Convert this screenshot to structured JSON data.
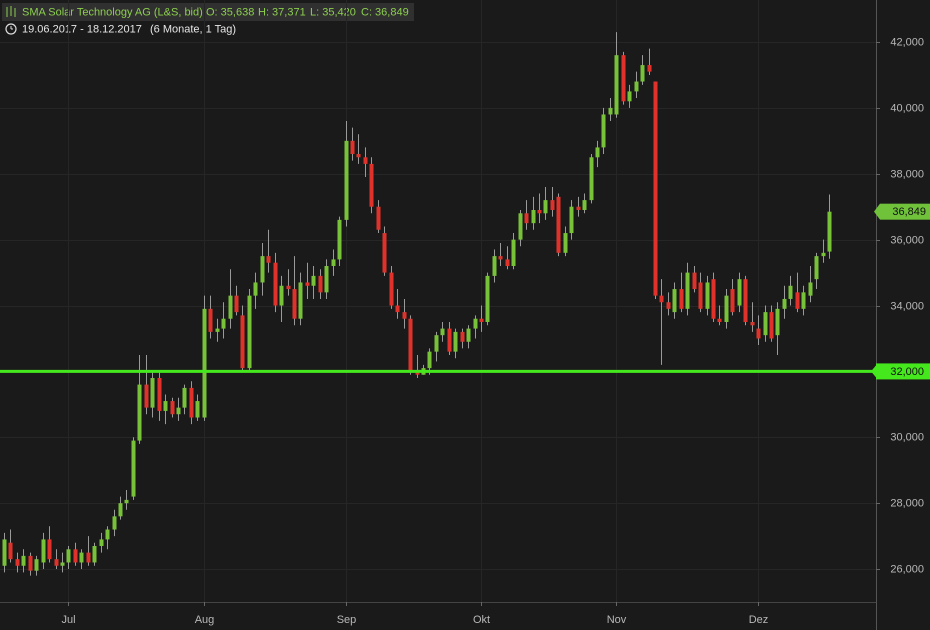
{
  "chart_data": {
    "type": "candlestick",
    "header": {
      "title": "SMA Solar Technology AG (L&S, bid)",
      "ohlc": [
        "O: 35,638",
        "H: 37,371",
        "L: 35,420",
        "C: 36,849"
      ],
      "range": "19.06.2017 - 18.12.2017",
      "period": "(6 Monate, 1 Tag)"
    },
    "up_color": "#78c23a",
    "down_color": "#e0322b",
    "ylim": [
      25000,
      43275
    ],
    "yticks": [
      {
        "value": 26000,
        "label": "26,000"
      },
      {
        "value": 28000,
        "label": "28,000"
      },
      {
        "value": 30000,
        "label": "30,000"
      },
      {
        "value": 32000,
        "label": "32,000"
      },
      {
        "value": 34000,
        "label": "34,000"
      },
      {
        "value": 36000,
        "label": "36,000"
      },
      {
        "value": 38000,
        "label": "38,000"
      },
      {
        "value": 40000,
        "label": "40,000"
      },
      {
        "value": 42000,
        "label": "42,000"
      }
    ],
    "grid": true,
    "level_line": {
      "value": 32000,
      "label": "32,000",
      "color": "#44e81c"
    },
    "last_price": {
      "value": 36849,
      "label": "36,849",
      "color": "#6fc23a"
    },
    "categories": [
      null,
      null,
      null,
      null,
      null,
      null,
      null,
      null,
      null,
      null,
      "Jul",
      null,
      null,
      null,
      null,
      null,
      null,
      null,
      null,
      null,
      null,
      null,
      null,
      null,
      null,
      null,
      null,
      null,
      null,
      null,
      null,
      "Aug",
      null,
      null,
      null,
      null,
      null,
      null,
      null,
      null,
      null,
      null,
      null,
      null,
      null,
      null,
      null,
      null,
      null,
      null,
      null,
      null,
      null,
      "Sep",
      null,
      null,
      null,
      null,
      null,
      null,
      null,
      null,
      null,
      null,
      null,
      null,
      null,
      null,
      null,
      null,
      null,
      null,
      null,
      null,
      "Okt",
      null,
      null,
      null,
      null,
      null,
      null,
      null,
      null,
      null,
      null,
      null,
      null,
      null,
      null,
      null,
      null,
      null,
      null,
      null,
      null,
      "Nov",
      null,
      null,
      null,
      null,
      null,
      null,
      null,
      null,
      null,
      null,
      null,
      null,
      null,
      null,
      null,
      null,
      null,
      null,
      null,
      null,
      null,
      "Dez",
      null,
      null,
      null,
      null,
      null,
      null,
      null,
      null,
      null,
      null,
      null
    ],
    "candles": [
      [
        26100,
        27100,
        25900,
        26900
      ],
      [
        26800,
        27200,
        26200,
        26300
      ],
      [
        26300,
        26500,
        25900,
        26100
      ],
      [
        26100,
        26600,
        25900,
        26400
      ],
      [
        26400,
        26500,
        25800,
        25950
      ],
      [
        25950,
        26400,
        25800,
        26300
      ],
      [
        26200,
        27100,
        26000,
        26900
      ],
      [
        26900,
        27300,
        26200,
        26300
      ],
      [
        26300,
        26600,
        26000,
        26100
      ],
      [
        26100,
        26500,
        25900,
        26200
      ],
      [
        26200,
        26700,
        26000,
        26600
      ],
      [
        26600,
        26800,
        26100,
        26200
      ],
      [
        26200,
        26600,
        26000,
        26500
      ],
      [
        26500,
        27000,
        26100,
        26200
      ],
      [
        26200,
        26800,
        26100,
        26700
      ],
      [
        26700,
        27100,
        26500,
        26900
      ],
      [
        26900,
        27300,
        26600,
        27200
      ],
      [
        27200,
        27800,
        27000,
        27600
      ],
      [
        27600,
        28200,
        27500,
        28000
      ],
      [
        28000,
        28400,
        27800,
        28100
      ],
      [
        28200,
        30000,
        28100,
        29900
      ],
      [
        29900,
        32500,
        29800,
        31600
      ],
      [
        31600,
        32500,
        30700,
        30900
      ],
      [
        30900,
        32000,
        30600,
        31800
      ],
      [
        31800,
        32000,
        30500,
        30800
      ],
      [
        30800,
        31300,
        30400,
        31100
      ],
      [
        31100,
        31200,
        30600,
        30700
      ],
      [
        30700,
        31200,
        30500,
        30900
      ],
      [
        30900,
        31600,
        30700,
        31500
      ],
      [
        31500,
        31700,
        30400,
        30600
      ],
      [
        30600,
        31300,
        30500,
        31100
      ],
      [
        30600,
        34300,
        30500,
        33900
      ],
      [
        33900,
        34300,
        33000,
        33200
      ],
      [
        33200,
        33600,
        32900,
        33300
      ],
      [
        33300,
        34100,
        33000,
        33600
      ],
      [
        33600,
        35100,
        33300,
        34300
      ],
      [
        34300,
        34600,
        33700,
        33800
      ],
      [
        33700,
        34000,
        32000,
        32100
      ],
      [
        32100,
        34500,
        32000,
        34300
      ],
      [
        34300,
        35000,
        33900,
        34700
      ],
      [
        34700,
        35900,
        34300,
        35500
      ],
      [
        35500,
        36300,
        35000,
        35300
      ],
      [
        35300,
        35600,
        33800,
        34000
      ],
      [
        34000,
        34900,
        33500,
        34600
      ],
      [
        34600,
        35100,
        34300,
        34500
      ],
      [
        34500,
        35500,
        33400,
        33600
      ],
      [
        33600,
        35000,
        33400,
        34700
      ],
      [
        34700,
        35300,
        34200,
        34600
      ],
      [
        34600,
        35200,
        34200,
        34900
      ],
      [
        34900,
        35100,
        34200,
        34400
      ],
      [
        34400,
        35400,
        34200,
        35200
      ],
      [
        35200,
        35700,
        34900,
        35400
      ],
      [
        35400,
        36700,
        35200,
        36600
      ],
      [
        36600,
        39600,
        36400,
        39000
      ],
      [
        39000,
        39400,
        38400,
        38600
      ],
      [
        38600,
        39200,
        38300,
        38500
      ],
      [
        38500,
        38800,
        37900,
        38300
      ],
      [
        38300,
        38500,
        36800,
        37000
      ],
      [
        37000,
        37200,
        36200,
        36300
      ],
      [
        36200,
        36400,
        34900,
        35000
      ],
      [
        35000,
        35200,
        33900,
        34000
      ],
      [
        34000,
        34500,
        33600,
        33800
      ],
      [
        33800,
        34200,
        33300,
        33600
      ],
      [
        33600,
        33700,
        31900,
        32000
      ],
      [
        32000,
        32500,
        31800,
        31900
      ],
      [
        31900,
        32200,
        31900,
        32100
      ],
      [
        32100,
        32700,
        31900,
        32600
      ],
      [
        32600,
        33200,
        32300,
        33100
      ],
      [
        33100,
        33500,
        32900,
        33300
      ],
      [
        33300,
        33500,
        32500,
        32600
      ],
      [
        32600,
        33300,
        32400,
        33200
      ],
      [
        33200,
        33300,
        32700,
        32900
      ],
      [
        32900,
        33400,
        32700,
        33300
      ],
      [
        33300,
        33700,
        33000,
        33600
      ],
      [
        33600,
        34000,
        33200,
        33500
      ],
      [
        33500,
        35000,
        33400,
        34900
      ],
      [
        34900,
        35700,
        34700,
        35500
      ],
      [
        35500,
        35900,
        35200,
        35400
      ],
      [
        35400,
        35800,
        35100,
        35200
      ],
      [
        35200,
        36200,
        35100,
        36000
      ],
      [
        36000,
        36900,
        35800,
        36800
      ],
      [
        36800,
        37200,
        36300,
        36500
      ],
      [
        36500,
        37300,
        36300,
        36900
      ],
      [
        36900,
        37400,
        36500,
        36800
      ],
      [
        36800,
        37600,
        36600,
        37200
      ],
      [
        37200,
        37600,
        36700,
        36900
      ],
      [
        37300,
        37400,
        35500,
        35600
      ],
      [
        35600,
        36400,
        35500,
        36200
      ],
      [
        36200,
        37200,
        36000,
        37000
      ],
      [
        37000,
        37300,
        36700,
        36900
      ],
      [
        36900,
        37400,
        36800,
        37200
      ],
      [
        37200,
        38600,
        37100,
        38500
      ],
      [
        38500,
        39000,
        38200,
        38800
      ],
      [
        38800,
        40000,
        38600,
        39800
      ],
      [
        39800,
        40300,
        39600,
        40000
      ],
      [
        39800,
        42300,
        39700,
        41600
      ],
      [
        41600,
        41700,
        40100,
        40200
      ],
      [
        40200,
        40700,
        40000,
        40500
      ],
      [
        40500,
        41100,
        40300,
        40800
      ],
      [
        40800,
        41600,
        40700,
        41300
      ],
      [
        41300,
        41800,
        41000,
        41100
      ],
      [
        40800,
        40800,
        34200,
        34300
      ],
      [
        34300,
        34800,
        32200,
        34100
      ],
      [
        34100,
        34400,
        33700,
        33900
      ],
      [
        33800,
        34700,
        33600,
        34500
      ],
      [
        34500,
        35000,
        33800,
        33900
      ],
      [
        33900,
        35300,
        33700,
        35000
      ],
      [
        35000,
        35200,
        34400,
        34500
      ],
      [
        34700,
        35000,
        33800,
        33900
      ],
      [
        33900,
        34900,
        33700,
        34700
      ],
      [
        34800,
        35000,
        33500,
        33600
      ],
      [
        33600,
        34000,
        33400,
        33500
      ],
      [
        33500,
        34500,
        33300,
        34300
      ],
      [
        34500,
        34800,
        33700,
        33800
      ],
      [
        34000,
        35000,
        33800,
        34800
      ],
      [
        34800,
        34900,
        33400,
        33500
      ],
      [
        33500,
        34100,
        33200,
        33400
      ],
      [
        33300,
        33700,
        32800,
        33000
      ],
      [
        33100,
        34000,
        32900,
        33800
      ],
      [
        33800,
        34000,
        32900,
        33000
      ],
      [
        33100,
        34100,
        32500,
        33900
      ],
      [
        33900,
        34600,
        33600,
        34200
      ],
      [
        34200,
        34900,
        34000,
        34600
      ],
      [
        34400,
        35000,
        33800,
        33900
      ],
      [
        33900,
        34600,
        33700,
        34400
      ],
      [
        34300,
        35200,
        34100,
        34700
      ],
      [
        34800,
        35600,
        34500,
        35500
      ],
      [
        35500,
        36000,
        35300,
        35600
      ],
      [
        35638,
        37371,
        35420,
        36849
      ]
    ]
  }
}
